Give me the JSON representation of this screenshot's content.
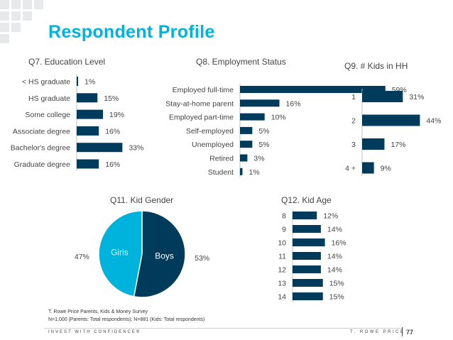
{
  "page": {
    "title": "Respondent Profile"
  },
  "footer": {
    "source_line1": "T. Rowe Price Parents, Kids & Money Survey",
    "source_line2": "N=1,000 (Parents: Total respondents); N=881 (Kids: Total respondents)",
    "tagline": "INVEST WITH CONFIDENCE®",
    "brand": "T. ROWE PRICE",
    "page_number": "77"
  },
  "colors": {
    "bar": "#003b5c",
    "accent": "#00b3dc",
    "boys": "#003b5c",
    "girls": "#00b3dc"
  },
  "chart_data": [
    {
      "type": "bar",
      "orientation": "horizontal",
      "title": "Q7. Education Level",
      "categories": [
        "< HS graduate",
        "HS graduate",
        "Some college",
        "Associate degree",
        "Bachelor's degree",
        "Graduate degree"
      ],
      "values": [
        1,
        15,
        19,
        16,
        33,
        16
      ],
      "labels": [
        "1%",
        "15%",
        "19%",
        "16%",
        "33%",
        "16%"
      ]
    },
    {
      "type": "bar",
      "orientation": "horizontal",
      "title": "Q8. Employment Status",
      "categories": [
        "Employed full-time",
        "Stay-at-home parent",
        "Employed part-time",
        "Self-employed",
        "Unemployed",
        "Retired",
        "Student"
      ],
      "values": [
        59,
        16,
        10,
        5,
        5,
        3,
        1
      ],
      "labels": [
        "59%",
        "16%",
        "10%",
        "5%",
        "5%",
        "3%",
        "1%"
      ]
    },
    {
      "type": "bar",
      "orientation": "horizontal",
      "title": "Q9. # Kids in HH",
      "categories": [
        "1",
        "2",
        "3",
        "4 +"
      ],
      "values": [
        31,
        44,
        17,
        9
      ],
      "labels": [
        "31%",
        "44%",
        "17%",
        "9%"
      ]
    },
    {
      "type": "pie",
      "title": "Q11. Kid Gender",
      "categories": [
        "Boys",
        "Girls"
      ],
      "values": [
        53,
        47
      ],
      "labels": [
        "53%",
        "47%"
      ]
    },
    {
      "type": "bar",
      "orientation": "horizontal",
      "title": "Q12. Kid Age",
      "categories": [
        "8",
        "9",
        "10",
        "11",
        "12",
        "13",
        "14"
      ],
      "values": [
        12,
        14,
        16,
        14,
        14,
        15,
        15
      ],
      "labels": [
        "12%",
        "14%",
        "16%",
        "14%",
        "14%",
        "15%",
        "15%"
      ]
    }
  ]
}
